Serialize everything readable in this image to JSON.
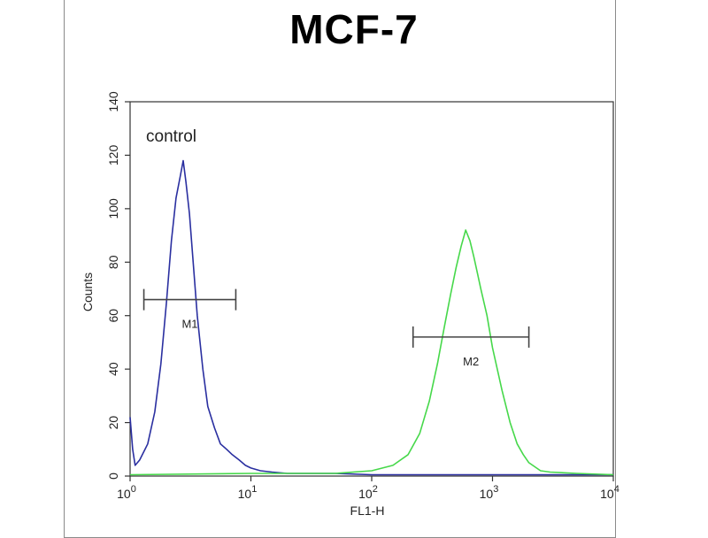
{
  "chart_data": {
    "type": "line",
    "title": "MCF-7",
    "xlabel": "FL1-H",
    "ylabel": "Counts",
    "x_scale": "log",
    "xlim": [
      1,
      10000
    ],
    "ylim": [
      0,
      140
    ],
    "x_ticks": [
      {
        "value": 1,
        "base": "10",
        "exp": "0"
      },
      {
        "value": 10,
        "base": "10",
        "exp": "1"
      },
      {
        "value": 100,
        "base": "10",
        "exp": "2"
      },
      {
        "value": 1000,
        "base": "10",
        "exp": "3"
      },
      {
        "value": 10000,
        "base": "10",
        "exp": "4"
      }
    ],
    "y_ticks": [
      0,
      20,
      40,
      60,
      80,
      100,
      120,
      140
    ],
    "grid": false,
    "annotation": "control",
    "series": [
      {
        "color": "#2a2fa0",
        "x": [
          1.0,
          1.05,
          1.1,
          1.2,
          1.4,
          1.6,
          1.8,
          2.0,
          2.2,
          2.4,
          2.6,
          2.75,
          2.9,
          3.1,
          3.3,
          3.6,
          4.0,
          4.4,
          5.0,
          5.6,
          6.3,
          7.0,
          8.0,
          9.0,
          10.0,
          12.0,
          15.0,
          20.0,
          30.0,
          50.0,
          100.0,
          300.0,
          1000.0,
          3000.0,
          10000.0
        ],
        "y": [
          22,
          10,
          4,
          6,
          12,
          24,
          42,
          65,
          88,
          104,
          112,
          118,
          110,
          98,
          82,
          60,
          40,
          26,
          18,
          12,
          10,
          8,
          6,
          4,
          3,
          2,
          1.5,
          1,
          1,
          1,
          0.5,
          0.5,
          0.5,
          0.5,
          0.5
        ]
      },
      {
        "color": "#46d84a",
        "x": [
          1.0,
          10.0,
          50.0,
          100.0,
          150.0,
          200.0,
          250.0,
          300.0,
          350.0,
          400.0,
          450.0,
          500.0,
          550.0,
          600.0,
          650.0,
          700.0,
          750.0,
          800.0,
          900.0,
          1000.0,
          1200.0,
          1400.0,
          1600.0,
          1800.0,
          2000.0,
          2500.0,
          3000.0,
          5000.0,
          10000.0
        ],
        "y": [
          0.5,
          1,
          1,
          2,
          4,
          8,
          16,
          28,
          42,
          56,
          68,
          78,
          86,
          92,
          88,
          82,
          76,
          70,
          60,
          48,
          32,
          20,
          12,
          8,
          5,
          2,
          1.5,
          1,
          0.5
        ]
      }
    ],
    "markers": [
      {
        "label": "M1",
        "x_start": 1.3,
        "x_end": 7.5,
        "y": 66
      },
      {
        "label": "M2",
        "x_start": 220,
        "x_end": 2000,
        "y": 52
      }
    ]
  }
}
